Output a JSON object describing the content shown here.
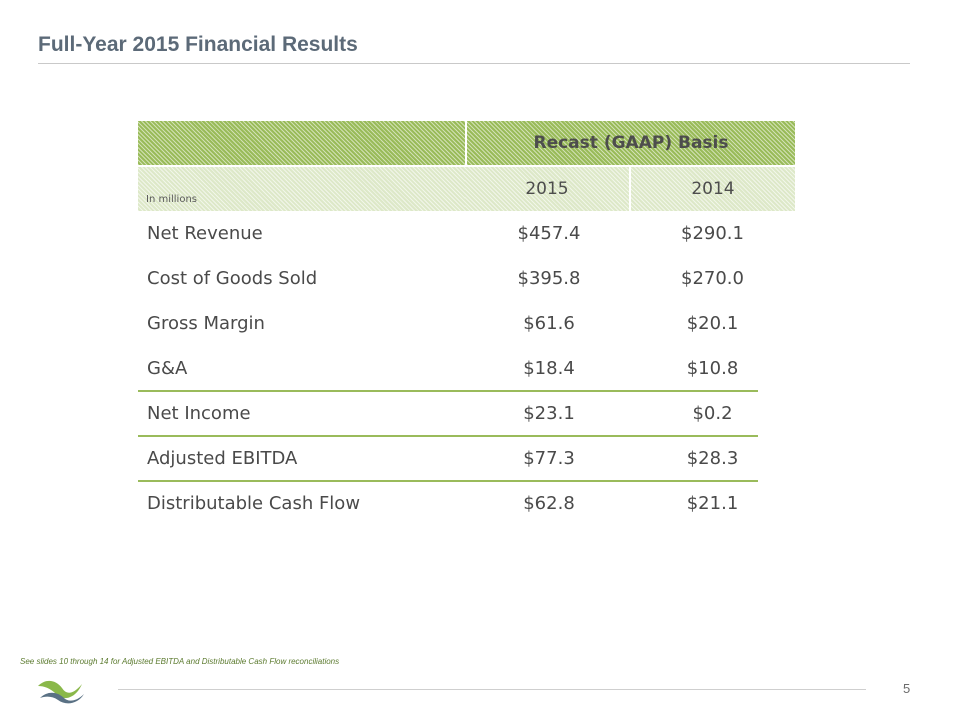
{
  "header": {
    "title": "Full-Year 2015 Financial Results"
  },
  "table": {
    "group_header": "Recast (GAAP) Basis",
    "units_label": "In millions",
    "years": [
      "2015",
      "2014"
    ],
    "rows": [
      {
        "label": "Net Revenue",
        "v2015": "$457.4",
        "v2014": "$290.1"
      },
      {
        "label": "Cost of Goods Sold",
        "v2015": "$395.8",
        "v2014": "$270.0"
      },
      {
        "label": "Gross Margin",
        "v2015": "$61.6",
        "v2014": "$20.1"
      },
      {
        "label": "G&A",
        "v2015": "$18.4",
        "v2014": "$10.8"
      },
      {
        "label": "Net Income",
        "v2015": "$23.1",
        "v2014": "$0.2"
      },
      {
        "label": "Adjusted EBITDA",
        "v2015": "$77.3",
        "v2014": "$28.3"
      },
      {
        "label": "Distributable Cash Flow",
        "v2015": "$62.8",
        "v2014": "$21.1"
      }
    ]
  },
  "footer": {
    "note": "See slides 10 through 14 for Adjusted EBITDA and Distributable Cash Flow reconciliations",
    "page_number": "5"
  },
  "colors": {
    "accent_green": "#99bb59",
    "title_slate": "#5c6a78",
    "logo_green": "#8ab84a",
    "logo_slate": "#5a7184"
  },
  "icons": {
    "logo": "company-logo-icon"
  }
}
